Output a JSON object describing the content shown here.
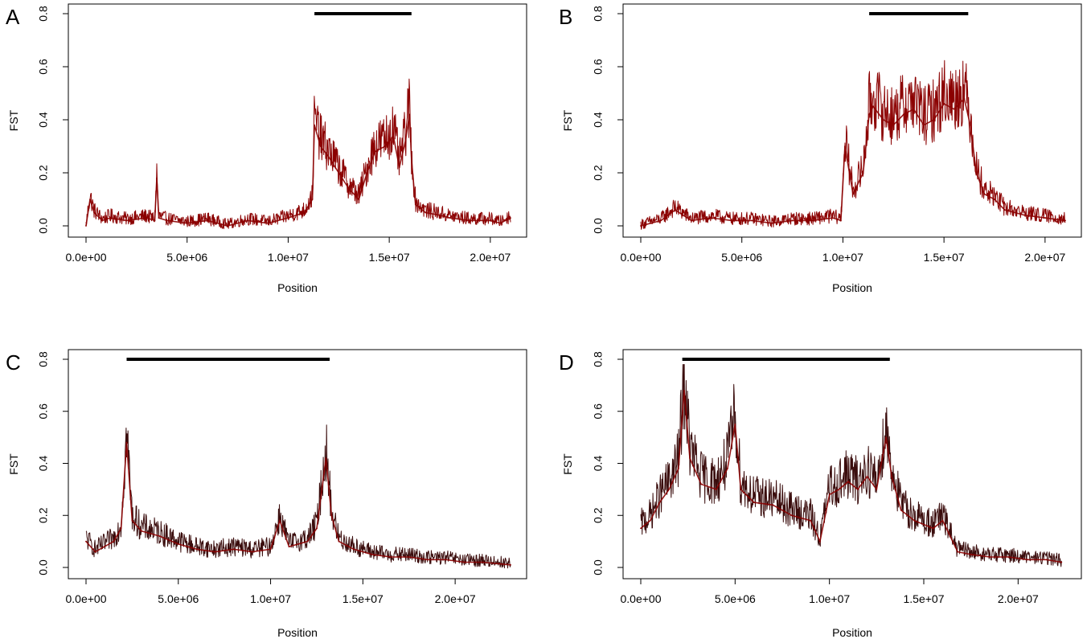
{
  "colors": {
    "series": "#8b0000",
    "series_dark": "#3a0c0c",
    "bar": "#000000",
    "axis": "#000000"
  },
  "chart_data": [
    {
      "panel": "A",
      "type": "line",
      "xlabel": "Position",
      "ylabel": "FST",
      "xlim": [
        0,
        21000000
      ],
      "ylim": [
        0,
        0.8
      ],
      "x_ticks": [
        0,
        5000000,
        10000000,
        15000000,
        20000000
      ],
      "x_tick_labels": [
        "0.0e+00",
        "5.0e+06",
        "1.0e+07",
        "1.5e+07",
        "2.0e+07"
      ],
      "y_ticks": [
        0,
        0.2,
        0.4,
        0.6,
        0.8
      ],
      "y_tick_labels": [
        "0.0",
        "0.2",
        "0.4",
        "0.6",
        "0.8"
      ],
      "bar": {
        "x_start": 11300000,
        "x_end": 16100000,
        "y": 0.8
      },
      "series": [
        {
          "x": [
            0,
            200000,
            400000,
            800000,
            1200000,
            2000000,
            3000000,
            3400000,
            3500000,
            3600000,
            4000000,
            5000000,
            6000000,
            7000000,
            8000000,
            9000000,
            10000000,
            10800000,
            11200000,
            11300000,
            11600000,
            12000000,
            12500000,
            13000000,
            13500000,
            13900000,
            14300000,
            14800000,
            15200000,
            15500000,
            15800000,
            16000000,
            16100000,
            16300000,
            16800000,
            17500000,
            18000000,
            19000000,
            20000000,
            20500000,
            21000000
          ],
          "y": [
            0.0,
            0.1,
            0.05,
            0.02,
            0.03,
            0.02,
            0.03,
            0.02,
            0.18,
            0.03,
            0.02,
            0.01,
            0.02,
            0.0,
            0.02,
            0.01,
            0.03,
            0.05,
            0.1,
            0.38,
            0.3,
            0.26,
            0.2,
            0.14,
            0.1,
            0.2,
            0.28,
            0.3,
            0.34,
            0.22,
            0.32,
            0.42,
            0.25,
            0.08,
            0.05,
            0.04,
            0.03,
            0.02,
            0.02,
            0.01,
            0.03
          ]
        }
      ]
    },
    {
      "panel": "B",
      "type": "line",
      "xlabel": "Position",
      "ylabel": "FST",
      "xlim": [
        0,
        21000000
      ],
      "ylim": [
        0,
        0.8
      ],
      "x_ticks": [
        0,
        5000000,
        10000000,
        15000000,
        20000000
      ],
      "x_tick_labels": [
        "0.0e+00",
        "5.0e+06",
        "1.0e+07",
        "1.5e+07",
        "2.0e+07"
      ],
      "y_ticks": [
        0,
        0.2,
        0.4,
        0.6,
        0.8
      ],
      "y_tick_labels": [
        "0.0",
        "0.2",
        "0.4",
        "0.6",
        "0.8"
      ],
      "bar": {
        "x_start": 11300000,
        "x_end": 16200000,
        "y": 0.8
      },
      "series": [
        {
          "x": [
            0,
            500000,
            1000000,
            1700000,
            2500000,
            3500000,
            4500000,
            5500000,
            6500000,
            7500000,
            8500000,
            9500000,
            9900000,
            10100000,
            10500000,
            11000000,
            11300000,
            11500000,
            12000000,
            12500000,
            13000000,
            13500000,
            14000000,
            14500000,
            15000000,
            15500000,
            16000000,
            16300000,
            16600000,
            17000000,
            17500000,
            18000000,
            19000000,
            20000000,
            21000000
          ],
          "y": [
            0.0,
            0.01,
            0.02,
            0.06,
            0.02,
            0.03,
            0.02,
            0.02,
            0.01,
            0.02,
            0.02,
            0.03,
            0.02,
            0.3,
            0.12,
            0.2,
            0.42,
            0.45,
            0.4,
            0.38,
            0.42,
            0.44,
            0.38,
            0.4,
            0.46,
            0.44,
            0.48,
            0.38,
            0.2,
            0.12,
            0.1,
            0.06,
            0.04,
            0.03,
            0.02
          ]
        }
      ]
    },
    {
      "panel": "C",
      "type": "line",
      "xlabel": "Position",
      "ylabel": "FST",
      "xlim": [
        0,
        23000000
      ],
      "ylim": [
        0,
        0.8
      ],
      "x_ticks": [
        0,
        5000000,
        10000000,
        15000000,
        20000000
      ],
      "x_tick_labels": [
        "0.0e+00",
        "5.0e+06",
        "1.0e+07",
        "1.5e+07",
        "2.0e+07"
      ],
      "y_ticks": [
        0,
        0.2,
        0.4,
        0.6,
        0.8
      ],
      "y_tick_labels": [
        "0.0",
        "0.2",
        "0.4",
        "0.6",
        "0.8"
      ],
      "bar": {
        "x_start": 2200000,
        "x_end": 13200000,
        "y": 0.8
      },
      "series": [
        {
          "x": [
            0,
            500000,
            1000000,
            1500000,
            1900000,
            2200000,
            2500000,
            3000000,
            4000000,
            5000000,
            6000000,
            7000000,
            8000000,
            9000000,
            10000000,
            10500000,
            11000000,
            12000000,
            12500000,
            13000000,
            13300000,
            13700000,
            14500000,
            15500000,
            16500000,
            17500000,
            18500000,
            19500000,
            20500000,
            21500000,
            23000000
          ],
          "y": [
            0.1,
            0.06,
            0.08,
            0.1,
            0.15,
            0.48,
            0.18,
            0.14,
            0.12,
            0.09,
            0.07,
            0.06,
            0.07,
            0.06,
            0.07,
            0.18,
            0.08,
            0.1,
            0.15,
            0.42,
            0.2,
            0.1,
            0.07,
            0.05,
            0.04,
            0.04,
            0.03,
            0.03,
            0.02,
            0.02,
            0.01
          ]
        }
      ]
    },
    {
      "panel": "D",
      "type": "line",
      "xlabel": "Position",
      "ylabel": "FST",
      "xlim": [
        0,
        22500000
      ],
      "ylim": [
        0,
        0.8
      ],
      "x_ticks": [
        0,
        5000000,
        10000000,
        15000000,
        20000000
      ],
      "x_tick_labels": [
        "0.0e+00",
        "5.0e+06",
        "1.0e+07",
        "1.5e+07",
        "2.0e+07"
      ],
      "y_ticks": [
        0,
        0.2,
        0.4,
        0.6,
        0.8
      ],
      "y_tick_labels": [
        "0.0",
        "0.2",
        "0.4",
        "0.6",
        "0.8"
      ],
      "bar": {
        "x_start": 2200000,
        "x_end": 13200000,
        "y": 0.8
      },
      "series": [
        {
          "x": [
            0,
            500000,
            1000000,
            1500000,
            2000000,
            2300000,
            2600000,
            3200000,
            4000000,
            4600000,
            5000000,
            5300000,
            6000000,
            7000000,
            8000000,
            9000000,
            9500000,
            10000000,
            10500000,
            11000000,
            11500000,
            12000000,
            12500000,
            13000000,
            13300000,
            13800000,
            14500000,
            15500000,
            16000000,
            16800000,
            17500000,
            18500000,
            19500000,
            20500000,
            21500000,
            22300000
          ],
          "y": [
            0.15,
            0.18,
            0.25,
            0.3,
            0.38,
            0.68,
            0.42,
            0.32,
            0.3,
            0.38,
            0.55,
            0.3,
            0.25,
            0.24,
            0.2,
            0.18,
            0.1,
            0.28,
            0.3,
            0.33,
            0.3,
            0.35,
            0.3,
            0.5,
            0.35,
            0.22,
            0.18,
            0.15,
            0.18,
            0.06,
            0.05,
            0.04,
            0.04,
            0.03,
            0.03,
            0.02
          ]
        }
      ]
    }
  ]
}
